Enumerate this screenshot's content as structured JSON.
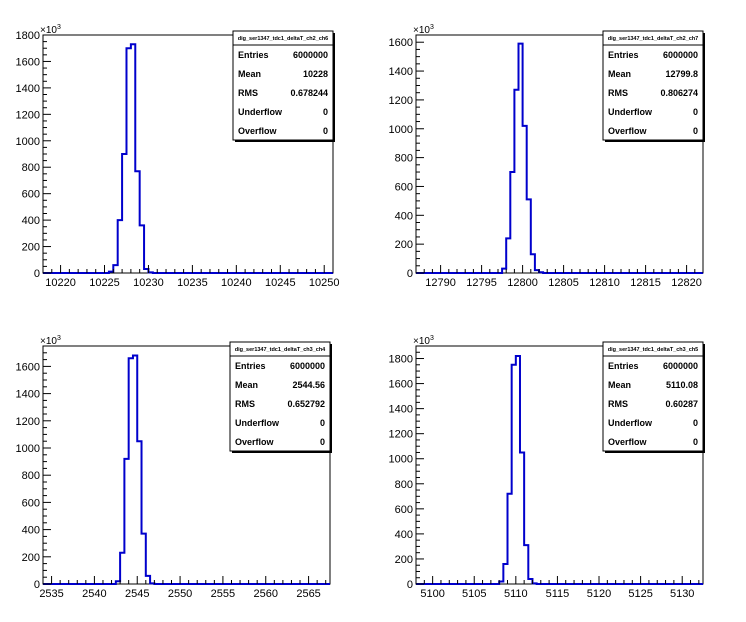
{
  "chart_data": [
    {
      "type": "bar",
      "histogram_name": "dig_ser1347_tdc1_deltaT_ch2_ch6",
      "xlim": [
        10218,
        10251
      ],
      "ylim": [
        0,
        1800
      ],
      "yexp": "×10",
      "yexp_power": "3",
      "xticks": [
        10220,
        10225,
        10230,
        10235,
        10240,
        10245,
        10250
      ],
      "yticks": [
        0,
        200,
        400,
        600,
        800,
        1000,
        1200,
        1400,
        1600,
        1800
      ],
      "ytick_labels": [
        "0",
        "200",
        "400",
        "600",
        "800",
        "1000",
        "1200",
        "1400",
        "1600",
        "1800"
      ],
      "bin_width": 0.5,
      "bins_x": [
        10225.5,
        10226.0,
        10226.5,
        10227.0,
        10227.5,
        10228.0,
        10228.5,
        10229.0,
        10229.5,
        10230.0
      ],
      "bins_y": [
        10,
        60,
        400,
        900,
        1700,
        1730,
        770,
        360,
        30,
        5
      ],
      "stats": [
        {
          "label": "Entries",
          "value": "6000000"
        },
        {
          "label": "Mean",
          "value": "10228"
        },
        {
          "label": "RMS",
          "value": "0.678244"
        },
        {
          "label": "Underflow",
          "value": "0"
        },
        {
          "label": "Overflow",
          "value": "0"
        }
      ]
    },
    {
      "type": "bar",
      "histogram_name": "dig_ser1347_tdc1_deltaT_ch2_ch7",
      "xlim": [
        12787,
        12822
      ],
      "ylim": [
        0,
        1650
      ],
      "yexp": "×10",
      "yexp_power": "3",
      "xticks": [
        12790,
        12795,
        12800,
        12805,
        12810,
        12815,
        12820
      ],
      "yticks": [
        0,
        200,
        400,
        600,
        800,
        1000,
        1200,
        1400,
        1600
      ],
      "ytick_labels": [
        "0",
        "200",
        "400",
        "600",
        "800",
        "1000",
        "1200",
        "1400",
        "1600"
      ],
      "bin_width": 0.5,
      "bins_x": [
        12797.5,
        12798.0,
        12798.5,
        12799.0,
        12799.5,
        12800.0,
        12800.5,
        12801.0,
        12801.5,
        12802.0
      ],
      "bins_y": [
        30,
        240,
        700,
        1270,
        1590,
        1020,
        510,
        130,
        20,
        5
      ],
      "stats": [
        {
          "label": "Entries",
          "value": "6000000"
        },
        {
          "label": "Mean",
          "value": "12799.8"
        },
        {
          "label": "RMS",
          "value": "0.806274"
        },
        {
          "label": "Underflow",
          "value": "0"
        },
        {
          "label": "Overflow",
          "value": "0"
        }
      ]
    },
    {
      "type": "bar",
      "histogram_name": "dig_ser1347_tdc1_deltaT_ch3_ch4",
      "xlim": [
        2534,
        2567.5
      ],
      "ylim": [
        0,
        1750
      ],
      "yexp": "×10",
      "yexp_power": "3",
      "xticks": [
        2535,
        2540,
        2545,
        2550,
        2555,
        2560,
        2565
      ],
      "yticks": [
        0,
        200,
        400,
        600,
        800,
        1000,
        1200,
        1400,
        1600
      ],
      "ytick_labels": [
        "0",
        "200",
        "400",
        "600",
        "800",
        "1000",
        "1200",
        "1400",
        "1600"
      ],
      "bin_width": 0.5,
      "bins_x": [
        2542.5,
        2543.0,
        2543.5,
        2544.0,
        2544.5,
        2545.0,
        2545.5,
        2546.0,
        2546.5
      ],
      "bins_y": [
        20,
        230,
        920,
        1660,
        1680,
        1050,
        370,
        60,
        5
      ],
      "stats": [
        {
          "label": "Entries",
          "value": "6000000"
        },
        {
          "label": "Mean",
          "value": "2544.56"
        },
        {
          "label": "RMS",
          "value": "0.652792"
        },
        {
          "label": "Underflow",
          "value": "0"
        },
        {
          "label": "Overflow",
          "value": "0"
        }
      ]
    },
    {
      "type": "bar",
      "histogram_name": "dig_ser1347_tdc1_deltaT_ch3_ch5",
      "xlim": [
        5098,
        5132.5
      ],
      "ylim": [
        0,
        1900
      ],
      "yexp": "×10",
      "yexp_power": "3",
      "xticks": [
        5100,
        5105,
        5110,
        5115,
        5120,
        5125,
        5130
      ],
      "yticks": [
        0,
        200,
        400,
        600,
        800,
        1000,
        1200,
        1400,
        1600,
        1800
      ],
      "ytick_labels": [
        "0",
        "200",
        "400",
        "600",
        "800",
        "1000",
        "1200",
        "1400",
        "1600",
        "1800"
      ],
      "bin_width": 0.5,
      "bins_x": [
        5108.0,
        5108.5,
        5109.0,
        5109.5,
        5110.0,
        5110.5,
        5111.0,
        5111.5,
        5112.0
      ],
      "bins_y": [
        20,
        160,
        720,
        1750,
        1820,
        1050,
        310,
        40,
        5
      ],
      "stats": [
        {
          "label": "Entries",
          "value": "6000000"
        },
        {
          "label": "Mean",
          "value": "5110.08"
        },
        {
          "label": "RMS",
          "value": "0.60287"
        },
        {
          "label": "Underflow",
          "value": "0"
        },
        {
          "label": "Overflow",
          "value": "0"
        }
      ]
    }
  ],
  "colors": {
    "line": "#0000cc",
    "axis": "#000000",
    "background": "#ffffff"
  }
}
